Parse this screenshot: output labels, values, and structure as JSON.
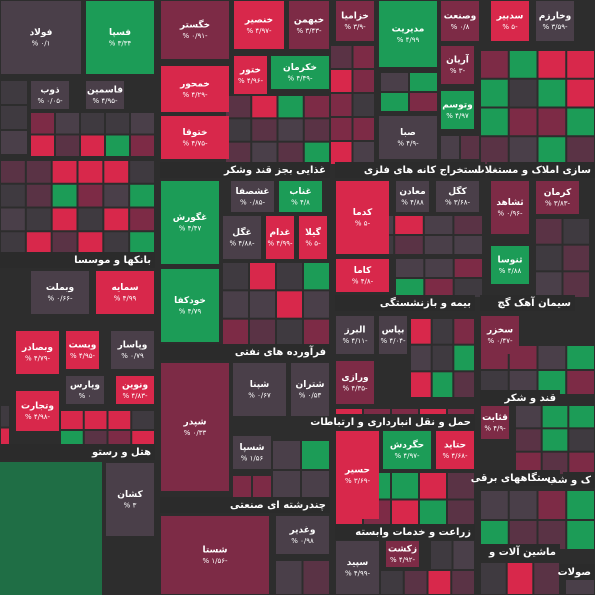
{
  "sectors": [
    "غذایی بجز قند وشکر",
    "استخراج کانه های فلزی",
    "سازی املاک و مستغلات",
    "بانکها و موسسا",
    "فرآورده های نفتی",
    "بیمه و بازنشستگی",
    "سیمان آهک گچ",
    "حمل و نقل انبارداری و ارتباطات",
    "قند و شکر",
    "هتل و رستو",
    "چندرشته ای صنعتی",
    "دستگاههای برقی",
    "زراعت و خدمات وابسته",
    "ماشین آلات و",
    "ک و شب",
    "صولات"
  ],
  "tiles": [
    {
      "name": "فولاد",
      "change": "۰/۱ %",
      "color": "#4a3f49"
    },
    {
      "name": "فسپا",
      "change": "۳/۳۴ %",
      "color": "#1c9c57"
    },
    {
      "name": "خگستر",
      "change": "-۰/۹۱ %",
      "color": "#7d2b46"
    },
    {
      "name": "خنصیر",
      "change": "-۴/۹۷ %",
      "color": "#d8284b"
    },
    {
      "name": "خبهمن",
      "change": "-۳/۴۳ %",
      "color": "#7d2b46"
    },
    {
      "name": "خزامیا",
      "change": "-۳/۹ %",
      "color": "#7d2b46"
    },
    {
      "name": "مدیریت",
      "change": "۴/۹۹ %",
      "color": "#1c9c57"
    },
    {
      "name": "وصنعت",
      "change": "۰/۸ %",
      "color": "#7d2b46"
    },
    {
      "name": "سدبیر",
      "change": "-۵ %",
      "color": "#d8284b"
    },
    {
      "name": "وخارزم",
      "change": "-۳/۵۹ %",
      "color": "#4a3f49"
    },
    {
      "name": "خمحور",
      "change": "-۴/۲۹ %",
      "color": "#d8284b"
    },
    {
      "name": "ختور",
      "change": "-۴/۹۶ %",
      "color": "#d8284b"
    },
    {
      "name": "خکرمان",
      "change": "-۴/۴۹ %",
      "color": "#1c9c57"
    },
    {
      "name": "آریان",
      "change": "-۳ %",
      "color": "#7d2b46"
    },
    {
      "name": "ذوب",
      "change": "-۰/۰۵ %",
      "color": "#4a3f49"
    },
    {
      "name": "فاسمین",
      "change": "-۴/۹۵ %",
      "color": "#4a3f49"
    },
    {
      "name": "ختوقا",
      "change": "-۴/۷۵ %",
      "color": "#d8284b"
    },
    {
      "name": "وتوسم",
      "change": "۴/۹۷ %",
      "color": "#1c9c57"
    },
    {
      "name": "صبا",
      "change": "-۴/۹ %",
      "color": "#4a3f49"
    },
    {
      "name": "غگورش",
      "change": "۴/۴۷ %",
      "color": "#1c9c57"
    },
    {
      "name": "غشصفا",
      "change": "-۰/۸۵ %",
      "color": "#4a3f49"
    },
    {
      "name": "غناب",
      "change": "۴/۸ %",
      "color": "#1c9c57"
    },
    {
      "name": "غگل",
      "change": "-۴/۸۸ %",
      "color": "#4a3f49"
    },
    {
      "name": "غدام",
      "change": "-۴/۹۹ %",
      "color": "#d8284b"
    },
    {
      "name": "گیلا",
      "change": "-۵ %",
      "color": "#d8284b"
    },
    {
      "name": "خودکفا",
      "change": "۴/۷۹ %",
      "color": "#1c9c57"
    },
    {
      "name": "کدما",
      "change": "-۵ %",
      "color": "#d8284b"
    },
    {
      "name": "معادن",
      "change": "۴/۸۸ %",
      "color": "#4a3f49"
    },
    {
      "name": "کگل",
      "change": "-۳/۶۸ %",
      "color": "#4a3f49"
    },
    {
      "name": "کاما",
      "change": "-۴/۸ %",
      "color": "#d8284b"
    },
    {
      "name": "ثشاهد",
      "change": "-۰/۹۶ %",
      "color": "#7d2b46"
    },
    {
      "name": "کرمان",
      "change": "-۳/۸۳ %",
      "color": "#7d2b46"
    },
    {
      "name": "ثنوسا",
      "change": "۴/۸۸ %",
      "color": "#1c9c57"
    },
    {
      "name": "وبملت",
      "change": "-۰/۶۶ %",
      "color": "#4a3f49"
    },
    {
      "name": "سمایه",
      "change": "۴/۹۹ %",
      "color": "#d8284b"
    },
    {
      "name": "وبصادر",
      "change": "-۴/۷۹ %",
      "color": "#d8284b"
    },
    {
      "name": "وبست",
      "change": "-۴/۹۵ %",
      "color": "#d8284b"
    },
    {
      "name": "وپاسار",
      "change": "۰/۷۹ %",
      "color": "#4a3f49"
    },
    {
      "name": "وپارس",
      "change": "۰ %",
      "color": "#4a3f49"
    },
    {
      "name": "ونوین",
      "change": "-۴/۸۳ %",
      "color": "#d8284b"
    },
    {
      "name": "وتجارت",
      "change": "-۴/۹۸ %",
      "color": "#d8284b"
    },
    {
      "name": "شپدر",
      "change": "۰/۳۳ %",
      "color": "#7d2b46"
    },
    {
      "name": "شپنا",
      "change": "۰/۶۷ %",
      "color": "#4a3f49"
    },
    {
      "name": "شتران",
      "change": "۰/۵۳ %",
      "color": "#4a3f49"
    },
    {
      "name": "شسپا",
      "change": "۱/۵۶ %",
      "color": "#4a3f49"
    },
    {
      "name": "البرز",
      "change": "-۴/۱۱ %",
      "color": "#4a3f49"
    },
    {
      "name": "بپاس",
      "change": "-۴/۰۴ %",
      "color": "#4a3f49"
    },
    {
      "name": "ورازی",
      "change": "-۴/۳۵ %",
      "color": "#7d2b46"
    },
    {
      "name": "سخزر",
      "change": "-۰/۴۷ %",
      "color": "#7d2b46"
    },
    {
      "name": "حسیر",
      "change": "-۳/۶۹ %",
      "color": "#d8284b"
    },
    {
      "name": "حگردش",
      "change": "-۴/۹۷ %",
      "color": "#1c9c57"
    },
    {
      "name": "حتاید",
      "change": "-۴/۶۸ %",
      "color": "#d8284b"
    },
    {
      "name": "قثابت",
      "change": "-۴/۹ %",
      "color": "#7d2b46"
    },
    {
      "name": "کشان",
      "change": "۳ %",
      "color": "#4a3f49"
    },
    {
      "name": "شستا",
      "change": "-۱/۵۶ %",
      "color": "#7d2b46"
    },
    {
      "name": "وغدیر",
      "change": "۰/۹۸ %",
      "color": "#4a3f49"
    },
    {
      "name": "زکشت",
      "change": "-۴/۹۲ %",
      "color": "#7d2b46"
    },
    {
      "name": "سپید",
      "change": "-۴/۹۹ %",
      "color": "#4a3f49"
    }
  ]
}
